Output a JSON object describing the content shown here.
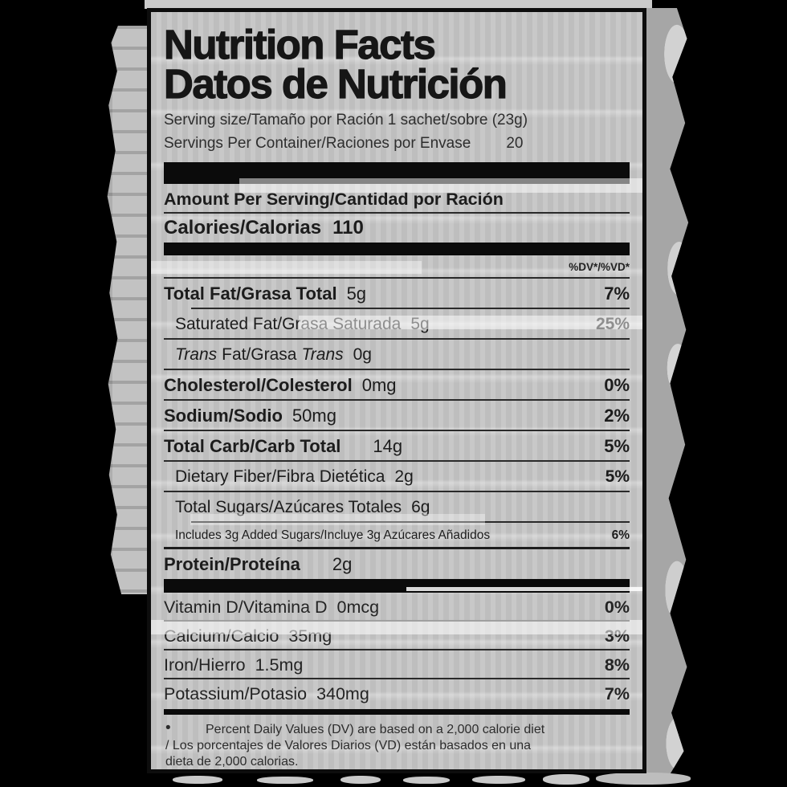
{
  "colors": {
    "background": "#000000",
    "paper": "#c5c5c5",
    "ink": "#1c1c1c",
    "bar": "#0b0b0b",
    "noise_light": "#c9c9c9",
    "noise_dark": "#a6a6a6"
  },
  "label": {
    "title": {
      "line1": "Nutrition Facts",
      "line2": "Datos de Nutrición"
    },
    "serving": {
      "size_line": "Serving size/Tamaño por Ración 1 sachet/sobre (23g)",
      "per_container_label": "Servings Per Container/Raciones por Envase",
      "per_container_value": "20"
    },
    "amount_per_serving": "Amount Per Serving/Cantidad por Ración",
    "calories": {
      "label": "Calories/Calorias",
      "value": "110"
    },
    "dv_header": "%DV*/%VD*",
    "nutrients": [
      {
        "name": "Total Fat/Grasa Total",
        "amount": "5g",
        "dv": "7%"
      },
      {
        "name": "Saturated Fat/Grasa Saturada",
        "amount": "5g",
        "dv": "25%"
      },
      {
        "name_italic_1": "Trans",
        "name_mid": "Fat/Grasa",
        "name_italic_2": "Trans",
        "amount": "0g",
        "dv": ""
      },
      {
        "name": "Cholesterol/Colesterol",
        "amount": "0mg",
        "dv": "0%"
      },
      {
        "name": "Sodium/Sodio",
        "amount": "50mg",
        "dv": "2%"
      },
      {
        "name": "Total Carb/Carb Total",
        "amount": "14g",
        "dv": "5%"
      },
      {
        "name": "Dietary Fiber/Fibra Dietética",
        "amount": "2g",
        "dv": "5%"
      },
      {
        "name": "Total Sugars/Azúcares Totales",
        "amount": "6g",
        "dv": ""
      },
      {
        "name": "Includes 3g Added Sugars/Incluye 3g Azúcares Añadidos",
        "amount": "",
        "dv": "6%"
      },
      {
        "name": "Protein/Proteína",
        "amount": "2g",
        "dv": ""
      }
    ],
    "vitamins": [
      {
        "name": "Vitamin D/Vitamina D",
        "amount": "0mcg",
        "dv": "0%"
      },
      {
        "name": "Calcium/Calcio",
        "amount": "35mg",
        "dv": "3%"
      },
      {
        "name": "Iron/Hierro",
        "amount": "1.5mg",
        "dv": "8%"
      },
      {
        "name": "Potassium/Potasio",
        "amount": "340mg",
        "dv": "7%"
      }
    ],
    "footnote": {
      "bullet": "•",
      "line1": "Percent Daily Values (DV) are based on a 2,000 calorie diet",
      "line2": "/ Los porcentajes de Valores Diarios (VD) están basados en una",
      "line3": "dieta de 2,000 calorias."
    }
  }
}
